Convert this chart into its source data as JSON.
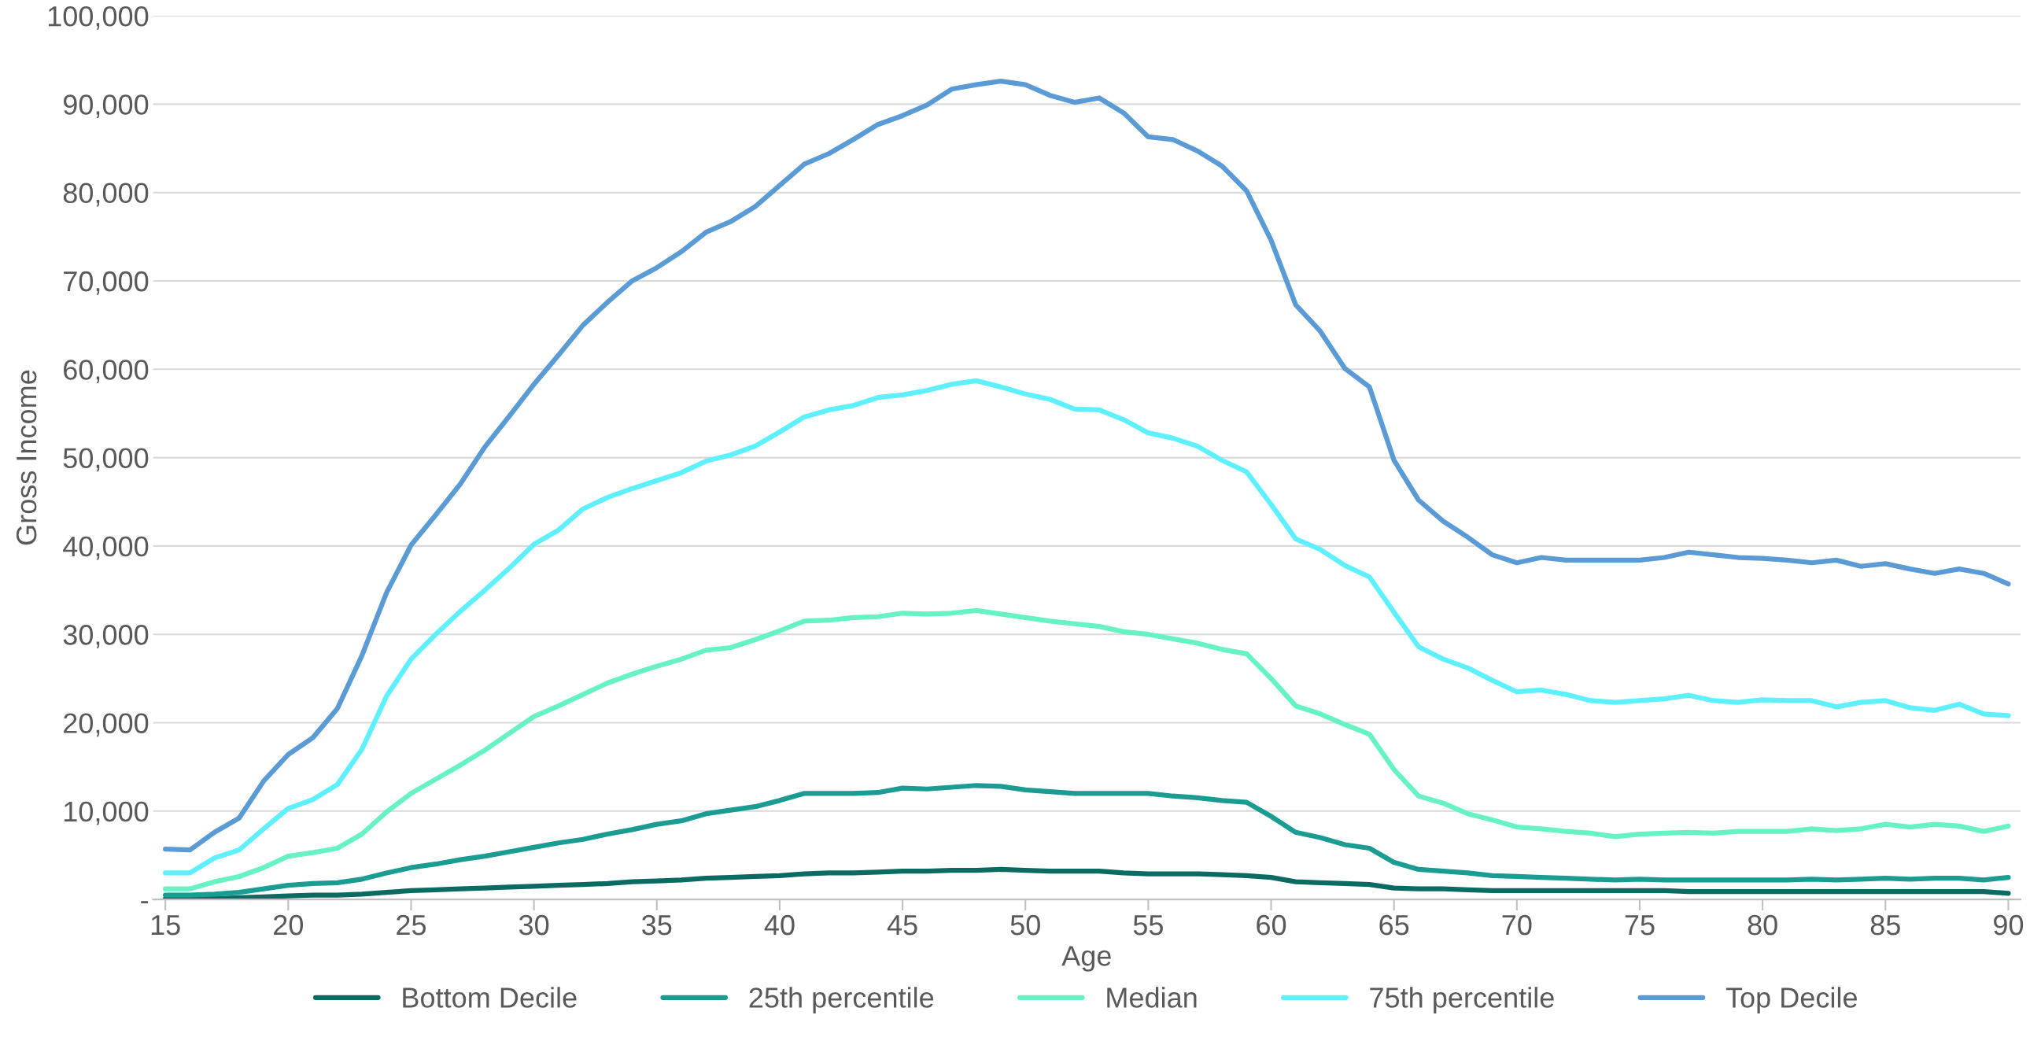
{
  "chart_data": {
    "type": "line",
    "xlabel": "Age",
    "ylabel": "Gross Income",
    "x": [
      15,
      16,
      17,
      18,
      19,
      20,
      21,
      22,
      23,
      24,
      25,
      26,
      27,
      28,
      29,
      30,
      31,
      32,
      33,
      34,
      35,
      36,
      37,
      38,
      39,
      40,
      41,
      42,
      43,
      44,
      45,
      46,
      47,
      48,
      49,
      50,
      51,
      52,
      53,
      54,
      55,
      56,
      57,
      58,
      59,
      60,
      61,
      62,
      63,
      64,
      65,
      66,
      67,
      68,
      69,
      70,
      71,
      72,
      73,
      74,
      75,
      76,
      77,
      78,
      79,
      80,
      81,
      82,
      83,
      84,
      85,
      86,
      87,
      88,
      89,
      90
    ],
    "series": [
      {
        "name": "Bottom Decile",
        "color": "#0b6b63",
        "values": [
          100,
          100,
          100,
          200,
          300,
          400,
          500,
          500,
          600,
          800,
          1000,
          1100,
          1200,
          1300,
          1400,
          1500,
          1600,
          1700,
          1800,
          2000,
          2100,
          2200,
          2400,
          2500,
          2600,
          2700,
          2900,
          3000,
          3000,
          3100,
          3200,
          3200,
          3300,
          3300,
          3400,
          3300,
          3200,
          3200,
          3200,
          3000,
          2900,
          2900,
          2900,
          2800,
          2700,
          2500,
          2000,
          1900,
          1800,
          1700,
          1300,
          1200,
          1200,
          1100,
          1000,
          1000,
          1000,
          1000,
          1000,
          1000,
          1000,
          1000,
          900,
          900,
          900,
          900,
          900,
          900,
          900,
          900,
          900,
          900,
          900,
          900,
          900,
          700
        ]
      },
      {
        "name": "25th percentile",
        "color": "#1a9c92",
        "values": [
          500,
          500,
          600,
          800,
          1200,
          1600,
          1800,
          1900,
          2300,
          3000,
          3600,
          4000,
          4500,
          4900,
          5400,
          5900,
          6400,
          6800,
          7400,
          7900,
          8500,
          8900,
          9700,
          10100,
          10500,
          11200,
          12000,
          12000,
          12000,
          12100,
          12600,
          12500,
          12700,
          12900,
          12800,
          12400,
          12200,
          12000,
          12000,
          12000,
          12000,
          11700,
          11500,
          11200,
          11000,
          9400,
          7600,
          7000,
          6200,
          5800,
          4200,
          3400,
          3200,
          3000,
          2700,
          2600,
          2500,
          2400,
          2300,
          2200,
          2300,
          2200,
          2200,
          2200,
          2200,
          2200,
          2200,
          2300,
          2200,
          2300,
          2400,
          2300,
          2400,
          2400,
          2200,
          2500
        ]
      },
      {
        "name": "Median",
        "color": "#66f2c4",
        "values": [
          1200,
          1200,
          2000,
          2600,
          3600,
          4900,
          5300,
          5800,
          7400,
          9900,
          12000,
          13600,
          15200,
          16900,
          18800,
          20700,
          21900,
          23200,
          24500,
          25500,
          26400,
          27200,
          28200,
          28500,
          29400,
          30400,
          31500,
          31600,
          31900,
          32000,
          32400,
          32300,
          32400,
          32700,
          32300,
          31900,
          31500,
          31200,
          30900,
          30300,
          30000,
          29500,
          29000,
          28300,
          27800,
          25000,
          21900,
          21000,
          19800,
          18700,
          14700,
          11700,
          10900,
          9700,
          9000,
          8200,
          8000,
          7700,
          7500,
          7100,
          7400,
          7500,
          7600,
          7500,
          7700,
          7700,
          7700,
          8000,
          7800,
          8000,
          8500,
          8200,
          8500,
          8300,
          7700,
          8300
        ]
      },
      {
        "name": "75th percentile",
        "color": "#5ef0ff",
        "values": [
          3000,
          3000,
          4700,
          5600,
          8000,
          10300,
          11300,
          13000,
          17000,
          23000,
          27200,
          30000,
          32600,
          35000,
          37500,
          40200,
          41800,
          44200,
          45500,
          46500,
          47400,
          48300,
          49600,
          50300,
          51300,
          52900,
          54600,
          55400,
          55900,
          56800,
          57100,
          57600,
          58300,
          58700,
          58000,
          57200,
          56600,
          55500,
          55400,
          54300,
          52800,
          52200,
          51300,
          49700,
          48400,
          44700,
          40800,
          39600,
          37800,
          36500,
          32500,
          28600,
          27200,
          26200,
          24800,
          23500,
          23700,
          23200,
          22500,
          22300,
          22500,
          22700,
          23100,
          22500,
          22300,
          22600,
          22500,
          22500,
          21800,
          22300,
          22500,
          21700,
          21400,
          22100,
          21000,
          20800
        ]
      },
      {
        "name": "Top Decile",
        "color": "#5b9bd5",
        "values": [
          5700,
          5600,
          7600,
          9200,
          13400,
          16400,
          18300,
          21600,
          27600,
          34700,
          40100,
          43500,
          47000,
          51200,
          54700,
          58300,
          61600,
          65000,
          67600,
          70000,
          71500,
          73300,
          75500,
          76700,
          78400,
          80800,
          83200,
          84400,
          86000,
          87700,
          88700,
          89900,
          91700,
          92200,
          92600,
          92200,
          91000,
          90200,
          90700,
          89000,
          86300,
          86000,
          84700,
          83000,
          80200,
          74600,
          67300,
          64300,
          60100,
          58000,
          49700,
          45200,
          42800,
          41000,
          39000,
          38100,
          38700,
          38400,
          38400,
          38400,
          38400,
          38700,
          39300,
          39000,
          38700,
          38600,
          38400,
          38100,
          38400,
          37700,
          38000,
          37400,
          36900,
          37400,
          36900,
          35700
        ]
      }
    ],
    "xlim": [
      14.5,
      90.5
    ],
    "xticks": [
      15,
      20,
      25,
      30,
      35,
      40,
      45,
      50,
      55,
      60,
      65,
      70,
      75,
      80,
      85,
      90
    ],
    "ylim": [
      0,
      100000
    ],
    "yticks": [
      {
        "value": 0,
        "label": "-"
      },
      {
        "value": 10000,
        "label": "10,000"
      },
      {
        "value": 20000,
        "label": "20,000"
      },
      {
        "value": 30000,
        "label": "30,000"
      },
      {
        "value": 40000,
        "label": "40,000"
      },
      {
        "value": 50000,
        "label": "50,000"
      },
      {
        "value": 60000,
        "label": "60,000"
      },
      {
        "value": 70000,
        "label": "70,000"
      },
      {
        "value": 80000,
        "label": "80,000"
      },
      {
        "value": 90000,
        "label": "90,000"
      },
      {
        "value": 100000,
        "label": "100,000"
      }
    ],
    "grid": "y",
    "legend": "bottom",
    "marker": "none",
    "line_style": "solid"
  }
}
